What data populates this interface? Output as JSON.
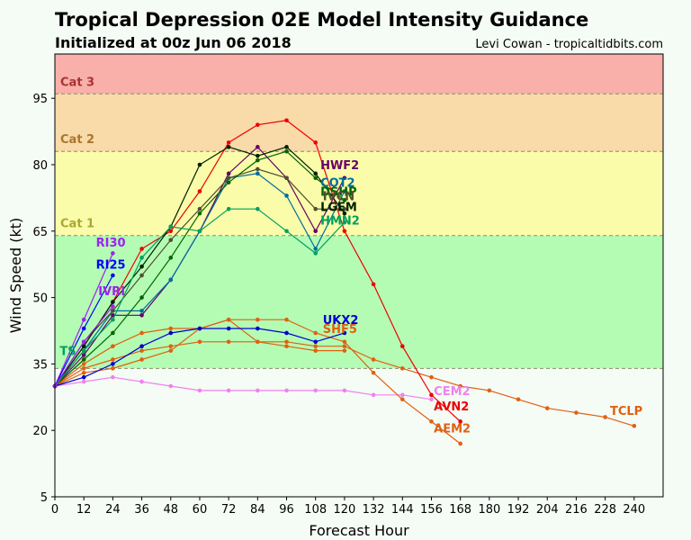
{
  "header": {
    "title": "Tropical Depression 02E Model Intensity Guidance",
    "subtitle": "Initialized at 00z Jun 06 2018",
    "credit": "Levi Cowan - tropicaltidbits.com"
  },
  "chart_data": {
    "type": "line",
    "title": "Tropical Depression 02E Model Intensity Guidance",
    "subtitle": "Initialized at 00z Jun 06 2018",
    "xlabel": "Forecast Hour",
    "ylabel": "Wind Speed (kt)",
    "xlim": [
      0,
      252
    ],
    "ylim": [
      5,
      105
    ],
    "xticks": [
      0,
      12,
      24,
      36,
      48,
      60,
      72,
      84,
      96,
      108,
      120,
      132,
      144,
      156,
      168,
      180,
      192,
      204,
      216,
      228,
      240
    ],
    "yticks": [
      5,
      20,
      35,
      50,
      65,
      80,
      95
    ],
    "grid": false,
    "legend": "none",
    "bands": [
      {
        "from": 5,
        "to": 34,
        "color": "#f5fbf5",
        "label": ""
      },
      {
        "from": 34,
        "to": 64,
        "color": "#b4fcb4",
        "label": ""
      },
      {
        "from": 64,
        "to": 83,
        "color": "#fafca9",
        "label": "Cat 1",
        "label_color": "#aaa833"
      },
      {
        "from": 83,
        "to": 96,
        "color": "#f9daa9",
        "label": "Cat 2",
        "label_color": "#a9762e"
      },
      {
        "from": 96,
        "to": 105,
        "color": "#f9afaa",
        "label": "Cat 3",
        "label_color": "#a93233"
      }
    ],
    "series": [
      {
        "name": "CEM2",
        "color": "#ee82ee",
        "x": [
          0,
          12,
          24,
          36,
          48,
          60,
          72,
          84,
          96,
          108,
          120,
          132,
          144,
          156
        ],
        "y": [
          30,
          31,
          32,
          31,
          30,
          29,
          29,
          29,
          29,
          29,
          29,
          28,
          28,
          27
        ],
        "label_pos": [
          157,
          28
        ]
      },
      {
        "name": "TCLP",
        "color": "#e06010",
        "x": [
          0,
          12,
          24,
          36,
          48,
          60,
          72,
          84,
          96,
          108,
          120,
          132,
          144,
          156,
          168,
          180,
          192,
          204,
          216,
          228,
          240
        ],
        "y": [
          30,
          34,
          36,
          38,
          39,
          40,
          40,
          40,
          40,
          39,
          39,
          36,
          34,
          32,
          30,
          29,
          27,
          25,
          24,
          23,
          21
        ],
        "label_pos": [
          230,
          23.5
        ]
      },
      {
        "name": "AEM2",
        "color": "#e06010",
        "x": [
          0,
          12,
          24,
          36,
          48,
          60,
          72,
          84,
          96,
          108,
          120,
          132,
          144,
          156,
          168
        ],
        "y": [
          30,
          35,
          39,
          42,
          43,
          43,
          45,
          45,
          45,
          42,
          40,
          33,
          27,
          22,
          17
        ],
        "label_pos": [
          157,
          19.5
        ]
      },
      {
        "name": "SHF5",
        "color": "#e06010",
        "x": [
          0,
          12,
          24,
          36,
          48,
          60,
          72,
          84,
          96,
          108,
          120
        ],
        "y": [
          30,
          33,
          34,
          36,
          38,
          43,
          45,
          40,
          39,
          38,
          38
        ],
        "label_pos": [
          111,
          42
        ]
      },
      {
        "name": "UKX2",
        "color": "#0000cd",
        "x": [
          0,
          12,
          24,
          36,
          48,
          60,
          72,
          84,
          96,
          108,
          120
        ],
        "y": [
          30,
          32,
          35,
          39,
          42,
          43,
          43,
          43,
          42,
          40,
          42
        ],
        "label_pos": [
          111,
          44
        ]
      },
      {
        "name": "AVN2",
        "color": "#ee0000",
        "x": [
          0,
          12,
          24,
          36,
          48,
          60,
          72,
          84,
          96,
          108,
          120,
          132,
          144,
          156,
          168
        ],
        "y": [
          30,
          39,
          49,
          61,
          65,
          74,
          85,
          89,
          90,
          85,
          65,
          53,
          39,
          28,
          22
        ],
        "label_pos": [
          157,
          24.5
        ]
      },
      {
        "name": "HWF2",
        "color": "#660066",
        "x": [
          0,
          12,
          24,
          36,
          48,
          60,
          72,
          84,
          96,
          108,
          120
        ],
        "y": [
          30,
          37,
          46,
          46,
          54,
          65,
          78,
          84,
          77,
          65,
          77
        ],
        "label_pos": [
          110,
          79
        ]
      },
      {
        "name": "COT2",
        "color": "#006da0",
        "x": [
          0,
          12,
          24,
          36,
          48,
          60,
          72,
          84,
          96,
          108,
          120
        ],
        "y": [
          30,
          38,
          47,
          47,
          54,
          65,
          77,
          78,
          73,
          61,
          74
        ],
        "label_pos": [
          110,
          75
        ]
      },
      {
        "name": "DSHP",
        "color": "#006600",
        "x": [
          0,
          12,
          24,
          36,
          48,
          60,
          72,
          84,
          96,
          108,
          120
        ],
        "y": [
          30,
          36,
          42,
          50,
          59,
          69,
          76,
          81,
          83,
          77,
          72
        ],
        "label_pos": [
          110,
          73
        ]
      },
      {
        "name": "IVCN",
        "color": "#505030",
        "x": [
          0,
          12,
          24,
          36,
          48,
          60,
          72,
          84,
          96,
          108,
          120
        ],
        "y": [
          30,
          40,
          47,
          55,
          63,
          70,
          77,
          79,
          77,
          70,
          70
        ],
        "label_pos": [
          111,
          72
        ]
      },
      {
        "name": "LGEM",
        "color": "#002000",
        "x": [
          0,
          12,
          24,
          36,
          48,
          60,
          72,
          84,
          96,
          108,
          120
        ],
        "y": [
          30,
          39,
          49,
          57,
          66,
          80,
          84,
          82,
          84,
          78,
          69
        ],
        "label_pos": [
          110,
          69.5
        ]
      },
      {
        "name": "HMN2",
        "color": "#00a060",
        "x": [
          0,
          12,
          24,
          36,
          48,
          60,
          72,
          84,
          96,
          108,
          120
        ],
        "y": [
          30,
          38,
          45,
          59,
          66,
          65,
          70,
          70,
          65,
          60,
          67
        ],
        "label_pos": [
          110,
          66.5
        ]
      },
      {
        "name": "RI30",
        "color": "#a020f0",
        "x": [
          0,
          12,
          24
        ],
        "y": [
          30,
          45,
          60
        ],
        "label_pos": [
          17,
          61.5
        ]
      },
      {
        "name": "RI25",
        "color": "#0000ff",
        "x": [
          0,
          12,
          24
        ],
        "y": [
          30,
          43,
          55
        ],
        "label_pos": [
          17,
          56.5
        ]
      },
      {
        "name": "IVRI",
        "color": "#a020f0",
        "x": [
          0,
          12,
          24
        ],
        "y": [
          30,
          40,
          48
        ],
        "label_pos": [
          18,
          50.5
        ]
      },
      {
        "name": "TS",
        "color": "#00a060",
        "x": [],
        "y": [],
        "label_pos": [
          2,
          37
        ]
      }
    ]
  }
}
